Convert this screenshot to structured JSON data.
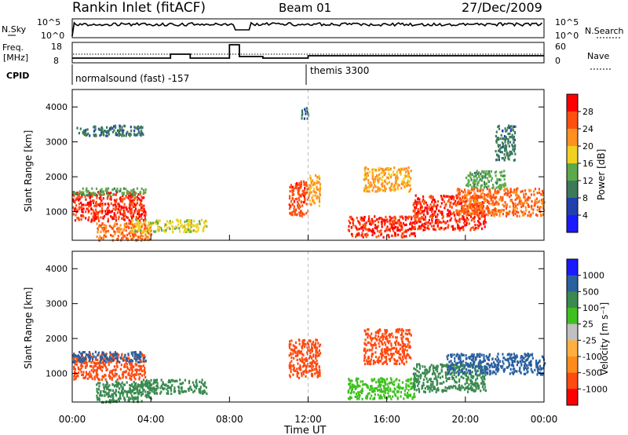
{
  "header": {
    "station": "Rankin Inlet (fitACF)",
    "beam": "Beam 01",
    "date": "27/Dec/2009"
  },
  "sky_panel": {
    "left_label": "N.Sky",
    "left_ticks": [
      "10^5",
      "10^0"
    ],
    "right_label": "N.Search",
    "right_ticks": [
      "10^5",
      "10^0"
    ]
  },
  "freq_panel": {
    "left_label_1": "Freq.",
    "left_label_2": "[MHz]",
    "left_ticks": [
      "18",
      "8"
    ],
    "right_label": "Nave",
    "right_ticks": [
      "60",
      "0"
    ]
  },
  "cpid_panel": {
    "label": "CPID",
    "programs": [
      "normalsound (fast) -157",
      "themis 3300"
    ]
  },
  "power_panel": {
    "ylabel": "Slant Range [km]",
    "yticks": [
      "4000",
      "3000",
      "2000",
      "1000"
    ],
    "colorbar_label": "Power [dB]",
    "colorbar_ticks": [
      "28",
      "24",
      "20",
      "16",
      "12",
      "8",
      "4"
    ]
  },
  "velocity_panel": {
    "ylabel": "Slant Range [km]",
    "yticks": [
      "4000",
      "3000",
      "2000",
      "1000"
    ],
    "colorbar_label": "Velocity  [m s⁻¹]",
    "colorbar_ticks": [
      "1000",
      "500",
      "100",
      "25",
      "-25",
      "-100",
      "-500",
      "-1000"
    ]
  },
  "xaxis": {
    "label": "Time UT",
    "ticks": [
      "00:00",
      "04:00",
      "08:00",
      "12:00",
      "16:00",
      "20:00",
      "00:00"
    ]
  },
  "colors": {
    "power_scale": [
      "#1a1aff",
      "#2040b0",
      "#3c7a5a",
      "#5aaa4a",
      "#f0d020",
      "#ff9020",
      "#ff5010",
      "#ff0000"
    ],
    "velocity_scale": [
      "#ff0000",
      "#ff4a10",
      "#ff8c1a",
      "#ffb040",
      "#c0c0c0",
      "#40c020",
      "#3a8a50",
      "#2a60a0",
      "#1a1aff"
    ]
  },
  "chart_data": {
    "type": "heatmap",
    "x_range_hours": [
      0,
      24
    ],
    "y_range_km": [
      180,
      4500
    ],
    "program_change_hour": 12.0,
    "power_blobs": [
      {
        "t0": 0.0,
        "t1": 3.7,
        "r0": 750,
        "r1": 1600,
        "level": 28
      },
      {
        "t0": 0.0,
        "t1": 3.7,
        "r0": 1500,
        "r1": 1700,
        "level": 12
      },
      {
        "t0": 1.2,
        "t1": 4.0,
        "r0": 200,
        "r1": 700,
        "level": 24
      },
      {
        "t0": 3.0,
        "t1": 6.8,
        "r0": 450,
        "r1": 800,
        "level": 16
      },
      {
        "t0": 0.2,
        "t1": 3.6,
        "r0": 3200,
        "r1": 3500,
        "level": 8
      },
      {
        "t0": 11.0,
        "t1": 12.0,
        "r0": 900,
        "r1": 1900,
        "level": 26
      },
      {
        "t0": 12.0,
        "t1": 12.6,
        "r0": 1200,
        "r1": 2100,
        "level": 20
      },
      {
        "t0": 11.6,
        "t1": 12.0,
        "r0": 3700,
        "r1": 4000,
        "level": 8
      },
      {
        "t0": 14.0,
        "t1": 17.4,
        "r0": 300,
        "r1": 900,
        "level": 28
      },
      {
        "t0": 14.8,
        "t1": 17.2,
        "r0": 1600,
        "r1": 2300,
        "level": 20
      },
      {
        "t0": 17.3,
        "t1": 21.0,
        "r0": 500,
        "r1": 1500,
        "level": 28
      },
      {
        "t0": 19.5,
        "t1": 24.0,
        "r0": 900,
        "r1": 1700,
        "level": 24
      },
      {
        "t0": 20.0,
        "t1": 22.0,
        "r0": 1700,
        "r1": 2200,
        "level": 12
      },
      {
        "t0": 21.5,
        "t1": 22.5,
        "r0": 2500,
        "r1": 3500,
        "level": 8
      }
    ],
    "velocity_blobs": [
      {
        "t0": 0.0,
        "t1": 3.7,
        "r0": 850,
        "r1": 1600,
        "level": -500
      },
      {
        "t0": 0.0,
        "t1": 3.7,
        "r0": 1350,
        "r1": 1650,
        "level": 500
      },
      {
        "t0": 1.2,
        "t1": 4.0,
        "r0": 200,
        "r1": 800,
        "level": 100
      },
      {
        "t0": 3.0,
        "t1": 6.8,
        "r0": 450,
        "r1": 850,
        "level": 100
      },
      {
        "t0": 11.0,
        "t1": 12.6,
        "r0": 900,
        "r1": 2000,
        "level": -500
      },
      {
        "t0": 14.0,
        "t1": 17.4,
        "r0": 300,
        "r1": 900,
        "level": 25
      },
      {
        "t0": 14.8,
        "t1": 17.2,
        "r0": 1300,
        "r1": 2300,
        "level": -500
      },
      {
        "t0": 17.3,
        "t1": 21.0,
        "r0": 500,
        "r1": 1300,
        "level": 100
      },
      {
        "t0": 19.0,
        "t1": 24.0,
        "r0": 1000,
        "r1": 1600,
        "level": 500
      }
    ]
  }
}
